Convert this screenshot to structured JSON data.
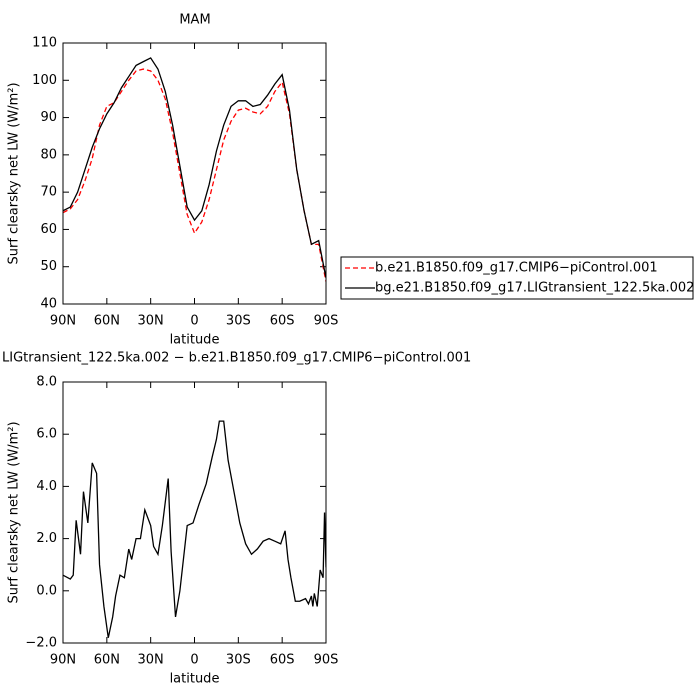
{
  "chart_data": [
    {
      "type": "line",
      "title": "MAM",
      "ylabel": "Surf clearsky net LW (W/m²)",
      "xlabel": "latitude",
      "x": [
        90,
        85,
        80,
        75,
        70,
        65,
        60,
        55,
        50,
        45,
        40,
        35,
        30,
        25,
        20,
        15,
        10,
        5,
        0,
        -5,
        -10,
        -15,
        -20,
        -25,
        -30,
        -35,
        -40,
        -45,
        -50,
        -55,
        -60,
        -65,
        -70,
        -75,
        -80,
        -85,
        -90
      ],
      "xlim": [
        90,
        -90
      ],
      "xticks": [
        {
          "value": 90,
          "label": "90N"
        },
        {
          "value": 60,
          "label": "60N"
        },
        {
          "value": 30,
          "label": "30N"
        },
        0,
        {
          "value": -30,
          "label": "30S"
        },
        {
          "value": -60,
          "label": "60S"
        },
        {
          "value": -90,
          "label": "90S"
        }
      ],
      "ylim": [
        40,
        110
      ],
      "yticks": [
        40,
        50,
        60,
        70,
        80,
        90,
        100,
        110
      ],
      "legend": "right",
      "series": [
        {
          "name": "b.e21.B1850.f09_g17.CMIP6−piControl.001",
          "color": "#ff0000",
          "linestyle": "dashed",
          "values": [
            64.5,
            65.5,
            68,
            73,
            79,
            88,
            93,
            94,
            97,
            100,
            102.5,
            103,
            102.5,
            100,
            95,
            86,
            75,
            64,
            59,
            62,
            68,
            76,
            84,
            89,
            92,
            92.5,
            91.5,
            91,
            93,
            97,
            99.5,
            91,
            76,
            65,
            56,
            56,
            46
          ]
        },
        {
          "name": "bg.e21.B1850.f09_g17.LIGtransient_122.5ka.002",
          "color": "#000000",
          "linestyle": "solid",
          "values": [
            65,
            66,
            70,
            76,
            82,
            87,
            91,
            94,
            98,
            101,
            104,
            105,
            106,
            103,
            97,
            88,
            77,
            66,
            62.5,
            65,
            72,
            81,
            88,
            93,
            94.5,
            94.5,
            93,
            93.5,
            96,
            99,
            101.5,
            92,
            76,
            65,
            56,
            57,
            47
          ]
        }
      ]
    },
    {
      "type": "line",
      "title": "LIGtransient_122.5ka.002 − b.e21.B1850.f09_g17.CMIP6−piControl.001",
      "ylabel": "Surf clearsky net LW (W/m²)",
      "xlabel": "latitude",
      "x": [
        90,
        85,
        83,
        81,
        78,
        76,
        73,
        70,
        67,
        65,
        62,
        59,
        56,
        54,
        51,
        48,
        45,
        43,
        40,
        37,
        34,
        30,
        28,
        25,
        22,
        18,
        16,
        13,
        10,
        7,
        5,
        1,
        -3,
        -8,
        -12,
        -15,
        -17,
        -20,
        -23,
        -27,
        -31,
        -35,
        -39,
        -43,
        -47,
        -51,
        -55,
        -59,
        -62,
        -64,
        -66,
        -69,
        -72,
        -76,
        -78,
        -80,
        -81,
        -82,
        -84,
        -85,
        -86,
        -88,
        -89,
        -90
      ],
      "xlim": [
        90,
        -90
      ],
      "xticks": [
        {
          "value": 90,
          "label": "90N"
        },
        {
          "value": 60,
          "label": "60N"
        },
        {
          "value": 30,
          "label": "30N"
        },
        0,
        {
          "value": -30,
          "label": "30S"
        },
        {
          "value": -60,
          "label": "60S"
        },
        {
          "value": -90,
          "label": "90S"
        }
      ],
      "ylim": [
        -2,
        8
      ],
      "yticks": [
        {
          "value": -2,
          "label": "−2.0"
        },
        {
          "value": 0,
          "label": "0.0"
        },
        {
          "value": 2,
          "label": "2.0"
        },
        {
          "value": 4,
          "label": "4.0"
        },
        {
          "value": 6,
          "label": "6.0"
        },
        {
          "value": 8,
          "label": "8.0"
        }
      ],
      "series": [
        {
          "color": "#000000",
          "linestyle": "solid",
          "values": [
            0.6,
            0.45,
            0.6,
            2.7,
            1.4,
            3.8,
            2.6,
            4.9,
            4.5,
            1.0,
            -0.6,
            -1.8,
            -1.0,
            -0.2,
            0.6,
            0.5,
            1.6,
            1.2,
            2.0,
            2.0,
            3.1,
            2.5,
            1.7,
            1.4,
            2.5,
            4.3,
            1.5,
            -1.0,
            0.0,
            1.5,
            2.5,
            2.6,
            3.3,
            4.1,
            5.1,
            5.8,
            6.5,
            6.5,
            5.0,
            3.8,
            2.6,
            1.8,
            1.4,
            1.6,
            1.9,
            2.0,
            1.9,
            1.8,
            2.3,
            1.2,
            0.5,
            -0.4,
            -0.4,
            -0.3,
            -0.5,
            -0.2,
            -0.6,
            -0.1,
            -0.6,
            0.1,
            0.8,
            0.5,
            3.0,
            0.9
          ]
        }
      ]
    }
  ]
}
